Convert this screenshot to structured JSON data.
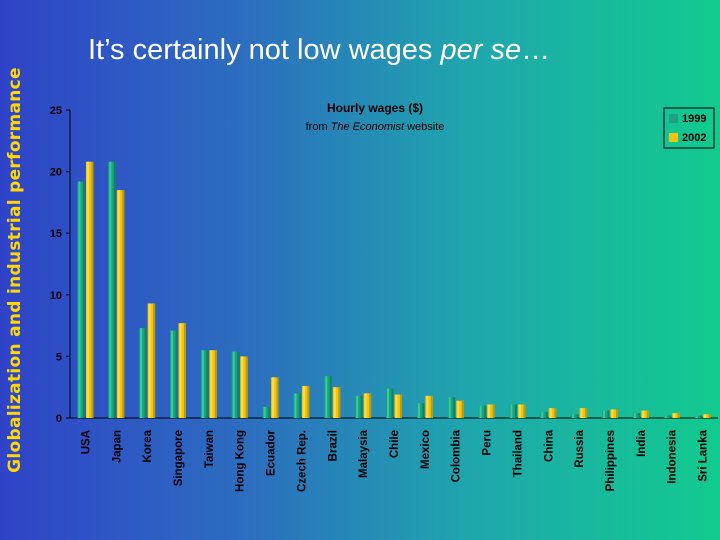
{
  "side_title": "Globalization and industrial performance",
  "slide_title": {
    "prefix": "It’s certainly not low wages ",
    "italic": "per se",
    "suffix": "…"
  },
  "colors": {
    "y1999": "#1aa37e",
    "y2002": "#f0c410",
    "title": "#ffd800"
  },
  "chart_data": {
    "type": "bar",
    "title": "Hourly wages ($)",
    "subtitle_prefix": "from ",
    "subtitle_italic": "The Economist",
    "subtitle_suffix": " website",
    "categories": [
      "USA",
      "Japan",
      "Korea",
      "Singapore",
      "Taiwan",
      "Hong Kong",
      "Ecuador",
      "Czech Rep.",
      "Brazil",
      "Malaysia",
      "Chile",
      "Mexico",
      "Colombia",
      "Peru",
      "Thailand",
      "China",
      "Russia",
      "Philippines",
      "India",
      "Indonesia",
      "Sri Lanka"
    ],
    "series": [
      {
        "name": "1999",
        "values": [
          19.2,
          20.8,
          7.3,
          7.1,
          5.5,
          5.4,
          0.9,
          2.0,
          3.4,
          1.8,
          2.4,
          1.2,
          1.7,
          1.0,
          1.1,
          0.5,
          0.3,
          0.6,
          0.4,
          0.2,
          0.2
        ]
      },
      {
        "name": "2002",
        "values": [
          20.8,
          18.5,
          9.3,
          7.7,
          5.5,
          5.0,
          3.3,
          2.6,
          2.5,
          2.0,
          1.9,
          1.8,
          1.4,
          1.1,
          1.1,
          0.8,
          0.8,
          0.7,
          0.6,
          0.4,
          0.3
        ]
      }
    ],
    "y_ticks": [
      "0",
      "5",
      "10",
      "15",
      "20",
      "25"
    ],
    "ylim": [
      0,
      25
    ],
    "legend_position": "top-right",
    "grid": false
  }
}
